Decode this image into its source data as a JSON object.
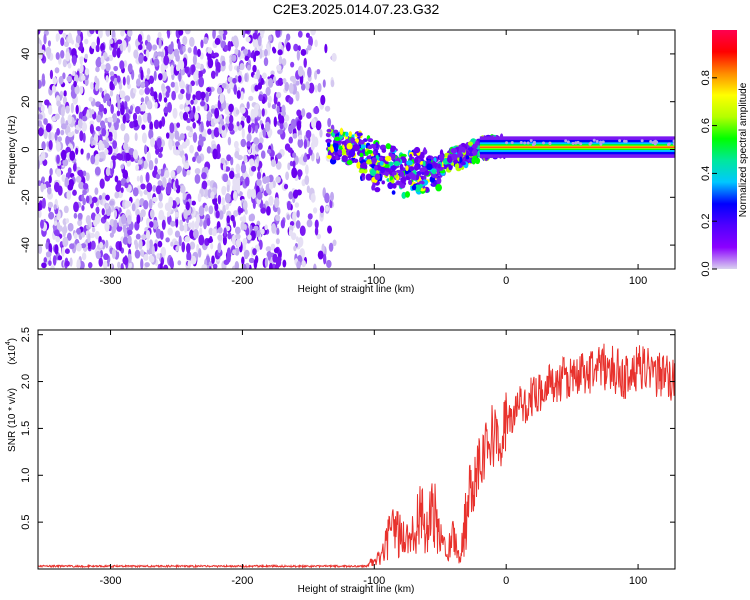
{
  "title": "C2E3.2025.014.07.23.G32",
  "spectrogram": {
    "xlabel": "Height of straight line (km)",
    "ylabel": "Frequency (Hz)",
    "xlim": [
      -355,
      128
    ],
    "ylim": [
      -50,
      50
    ],
    "xticks": [
      "-300",
      "-200",
      "-100",
      "0",
      "100"
    ],
    "xtick_values": [
      -300,
      -200,
      -100,
      0,
      100
    ],
    "yticks": [
      "-40",
      "-20",
      "0",
      "20",
      "40"
    ],
    "ytick_values": [
      -40,
      -20,
      0,
      20,
      40
    ],
    "colorbar": {
      "label": "Normalized spectral amplitude",
      "range": [
        0,
        1
      ],
      "ticks": [
        "0.0",
        "0.2",
        "0.4",
        "0.6",
        "0.8"
      ],
      "tick_values": [
        0.0,
        0.2,
        0.4,
        0.6,
        0.8
      ]
    }
  },
  "chart_data": {
    "type": "line",
    "xlabel": "Height of straight line (km)",
    "ylabel": "SNR (10 * v/v)",
    "scale_note": "(x10",
    "scale_exp": "4",
    "scale_close": ")",
    "xlim": [
      -355,
      128
    ],
    "ylim": [
      0,
      2.55
    ],
    "xticks": [
      "-300",
      "-200",
      "-100",
      "0",
      "100"
    ],
    "xtick_values": [
      -300,
      -200,
      -100,
      0,
      100
    ],
    "yticks": [
      "0.5",
      "1.0",
      "1.5",
      "2.0",
      "2.5"
    ],
    "ytick_values": [
      0.5,
      1.0,
      1.5,
      2.0,
      2.5
    ],
    "grid": false,
    "series": [
      {
        "color": "#e8322d",
        "x": [
          -355,
          -300,
          -250,
          -200,
          -150,
          -120,
          -105,
          -95,
          -90,
          -85,
          -80,
          -75,
          -70,
          -65,
          -60,
          -55,
          -50,
          -45,
          -40,
          -35,
          -32,
          -28,
          -25,
          -20,
          -15,
          -10,
          -5,
          0,
          5,
          10,
          15,
          20,
          25,
          30,
          40,
          50,
          60,
          70,
          80,
          90,
          100,
          110,
          120,
          128
        ],
        "y": [
          0.02,
          0.02,
          0.02,
          0.02,
          0.02,
          0.02,
          0.05,
          0.12,
          0.3,
          0.45,
          0.35,
          0.3,
          0.5,
          0.55,
          0.4,
          0.6,
          0.3,
          0.25,
          0.35,
          0.1,
          0.4,
          0.8,
          0.95,
          1.2,
          1.35,
          1.45,
          1.3,
          1.6,
          1.6,
          1.75,
          1.75,
          1.85,
          1.9,
          1.95,
          2.0,
          2.05,
          2.1,
          2.15,
          2.15,
          2.05,
          2.15,
          2.1,
          2.05,
          2.0
        ]
      }
    ]
  },
  "colors": {
    "snr_line": "#e8322d",
    "colormap": [
      "#d9d2ef",
      "#8b00ff",
      "#5000ff",
      "#0000ff",
      "#00c8ff",
      "#00e89c",
      "#00ff00",
      "#b4ff00",
      "#ffff00",
      "#ff8c00",
      "#ff0000",
      "#ff0050"
    ]
  }
}
